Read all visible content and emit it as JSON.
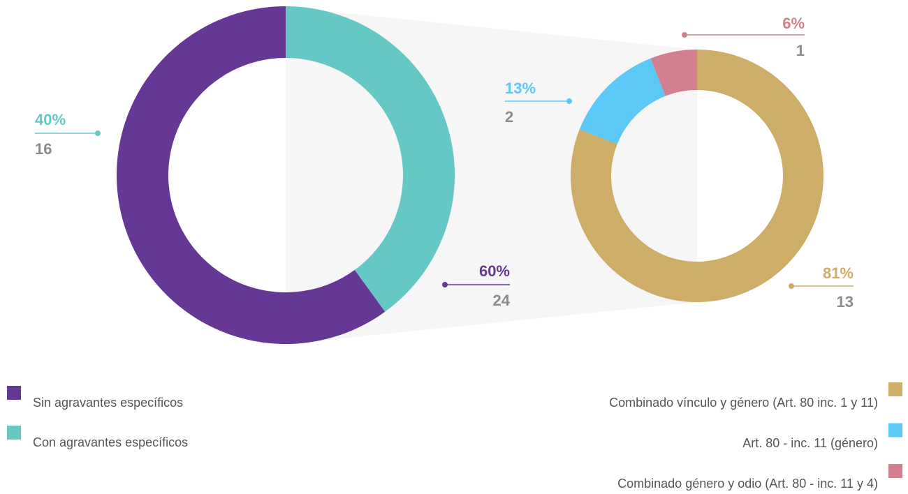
{
  "chart_data": [
    {
      "type": "pie",
      "categories": [
        "Sin agravantes específicos",
        "Con agravantes específicos"
      ],
      "values": [
        60,
        40
      ],
      "value_labels": [
        "60%",
        "40%"
      ],
      "counts": [
        24,
        16
      ],
      "colors": [
        "#653896",
        "#66c8c4"
      ]
    },
    {
      "type": "pie",
      "categories": [
        "Combinado vínculo y género (Art. 80 inc. 1 y 11)",
        "Art. 80 - inc. 11 (género)",
        "Combinado género y odio (Art. 80 - inc. 11 y 4)"
      ],
      "values": [
        81,
        13,
        6
      ],
      "value_labels": [
        "81%",
        "13%",
        "6%"
      ],
      "counts": [
        13,
        2,
        1
      ],
      "colors": [
        "#cdad67",
        "#5bc8f5",
        "#d47f8f"
      ]
    }
  ]
}
